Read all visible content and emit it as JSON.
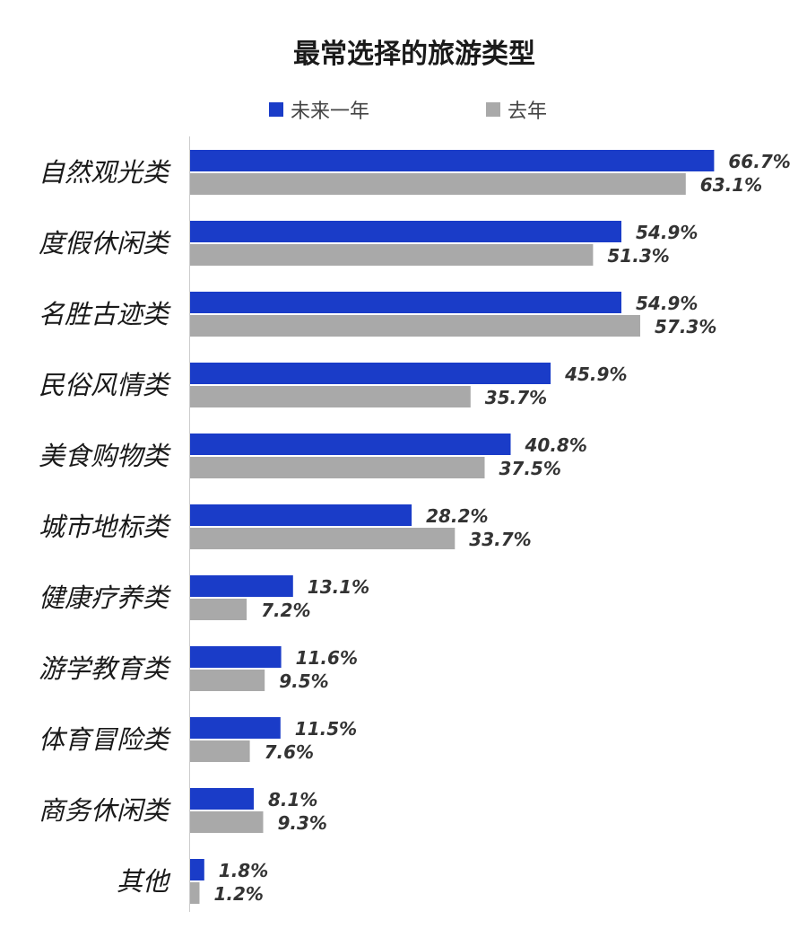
{
  "chart_data": {
    "type": "bar",
    "orientation": "horizontal",
    "title": "最常选择的旅游类型",
    "categories": [
      "自然观光类",
      "度假休闲类",
      "名胜古迹类",
      "民俗风情类",
      "美食购物类",
      "城市地标类",
      "健康疗养类",
      "游学教育类",
      "体育冒险类",
      "商务休闲类",
      "其他"
    ],
    "series": [
      {
        "name": "未来一年",
        "color": "#1a3cc8",
        "values": [
          66.7,
          54.9,
          54.9,
          45.9,
          40.8,
          28.2,
          13.1,
          11.6,
          11.5,
          8.1,
          1.8
        ],
        "labels": [
          "66.7%",
          "54.9%",
          "54.9%",
          "45.9%",
          "40.8%",
          "28.2%",
          "13.1%",
          "11.6%",
          "11.5%",
          "8.1%",
          "1.8%"
        ]
      },
      {
        "name": "去年",
        "color": "#a9a9a9",
        "values": [
          63.1,
          51.3,
          57.3,
          35.7,
          37.5,
          33.7,
          7.2,
          9.5,
          7.6,
          9.3,
          1.2
        ],
        "labels": [
          "63.1%",
          "51.3%",
          "57.3%",
          "35.7%",
          "37.5%",
          "33.7%",
          "7.2%",
          "9.5%",
          "7.6%",
          "9.3%",
          "1.2%"
        ]
      }
    ],
    "xlim": [
      0,
      67
    ],
    "grid": false,
    "legend_position": "top"
  }
}
